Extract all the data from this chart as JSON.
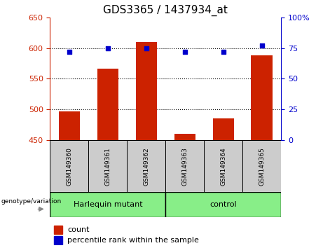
{
  "title": "GDS3365 / 1437934_at",
  "samples": [
    "GSM149360",
    "GSM149361",
    "GSM149362",
    "GSM149363",
    "GSM149364",
    "GSM149365"
  ],
  "counts": [
    497,
    567,
    610,
    460,
    485,
    588
  ],
  "percentiles": [
    72,
    75,
    75,
    72,
    72,
    77
  ],
  "ylim_left": [
    450,
    650
  ],
  "ylim_right": [
    0,
    100
  ],
  "yticks_left": [
    450,
    500,
    550,
    600,
    650
  ],
  "yticks_right": [
    0,
    25,
    50,
    75,
    100
  ],
  "ytick_labels_right": [
    "0",
    "25",
    "50",
    "75",
    "100%"
  ],
  "bar_color": "#cc2200",
  "dot_color": "#0000cc",
  "bar_baseline": 450,
  "group1_label": "Harlequin mutant",
  "group2_label": "control",
  "group_color": "#88ee88",
  "sample_box_color": "#cccccc",
  "genotype_label": "genotype/variation",
  "figsize": [
    4.61,
    3.54
  ],
  "dpi": 100,
  "title_fontsize": 11,
  "tick_fontsize": 8,
  "label_fontsize": 8,
  "legend_fontsize": 8
}
